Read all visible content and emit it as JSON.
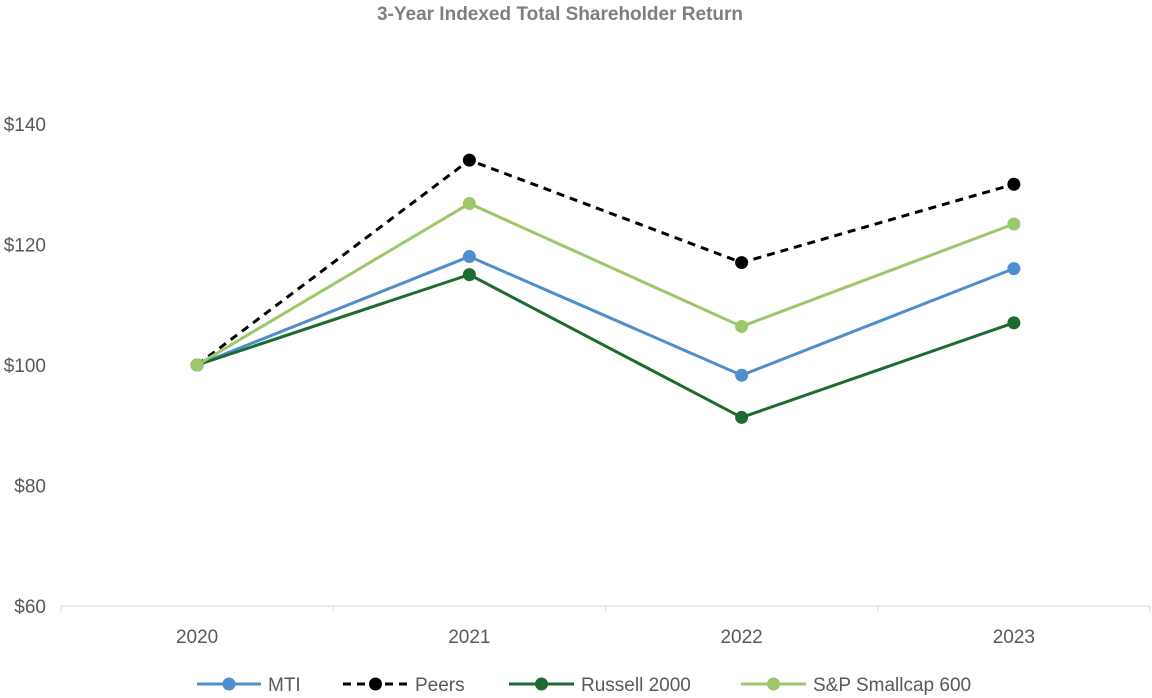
{
  "chart_data": {
    "type": "line",
    "title": "3-Year Indexed Total Shareholder Return",
    "xlabel": "",
    "ylabel": "",
    "categories": [
      "2020",
      "2021",
      "2022",
      "2023"
    ],
    "ylim": [
      60,
      140
    ],
    "yticks": [
      60,
      80,
      100,
      120,
      140
    ],
    "ytick_labels": [
      "$60",
      "$80",
      "$100",
      "$120",
      "$140"
    ],
    "grid": false,
    "legend_position": "bottom",
    "series": [
      {
        "name": "MTI",
        "values": [
          100,
          118,
          98.3,
          116
        ],
        "color": "#4e8fcb",
        "dashed": false
      },
      {
        "name": "Peers",
        "values": [
          100,
          134,
          117,
          130
        ],
        "color": "#000000",
        "dashed": true
      },
      {
        "name": "Russell 2000",
        "values": [
          100,
          115,
          91.3,
          107
        ],
        "color": "#1e6b2f",
        "dashed": false
      },
      {
        "name": "S&P Smallcap 600",
        "values": [
          100,
          126.8,
          106.4,
          123.4
        ],
        "color": "#9cc76a",
        "dashed": false
      }
    ]
  }
}
